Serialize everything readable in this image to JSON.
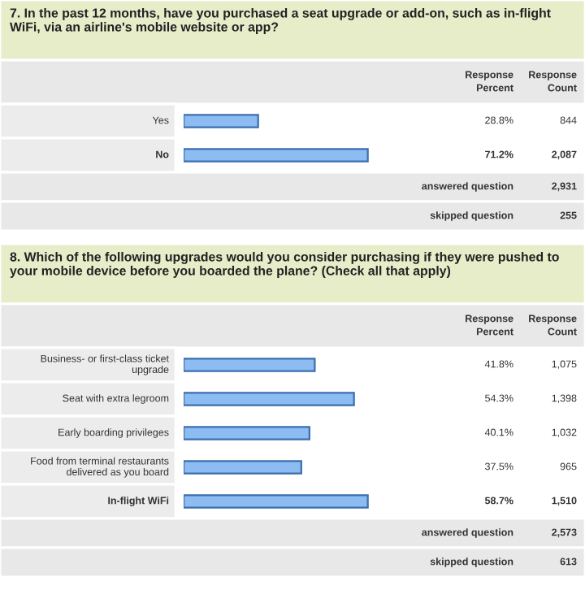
{
  "chart_data": [
    {
      "type": "bar",
      "orientation": "horizontal",
      "title": "7. In the past 12 months, have you purchased a seat upgrade or add-on, such as in-flight WiFi, via an airline's mobile website or app?",
      "categories": [
        "Yes",
        "No"
      ],
      "values": [
        28.8,
        71.2
      ],
      "value_labels": [
        "28.8%",
        "71.2%"
      ],
      "color": "#8cbcf2",
      "tick_labels": false,
      "legend": false,
      "annotations": [
        "Response Percent",
        "Response Count",
        "844",
        "2,087",
        "answered question",
        "2,931",
        "skipped question",
        "255"
      ]
    },
    {
      "type": "bar",
      "orientation": "horizontal",
      "title": "8. Which of the following upgrades would you consider purchasing if they were pushed to your mobile device before you boarded the plane? (Check all that apply)",
      "categories": [
        "Business- or first-class ticket upgrade",
        "Seat with extra legroom",
        "Early boarding privileges",
        "Food from terminal restaurants delivered as you board",
        "In-flight WiFi"
      ],
      "values": [
        41.8,
        54.3,
        40.1,
        37.5,
        58.7
      ],
      "value_labels": [
        "41.8%",
        "54.3%",
        "40.1%",
        "37.5%",
        "58.7%"
      ],
      "color": "#8cbcf2",
      "tick_labels": false,
      "legend": false,
      "annotations": [
        "Response Percent",
        "Response Count",
        "1,075",
        "1,398",
        "1,032",
        "965",
        "1,510",
        "answered question",
        "2,573",
        "skipped question",
        "613"
      ]
    }
  ]
}
